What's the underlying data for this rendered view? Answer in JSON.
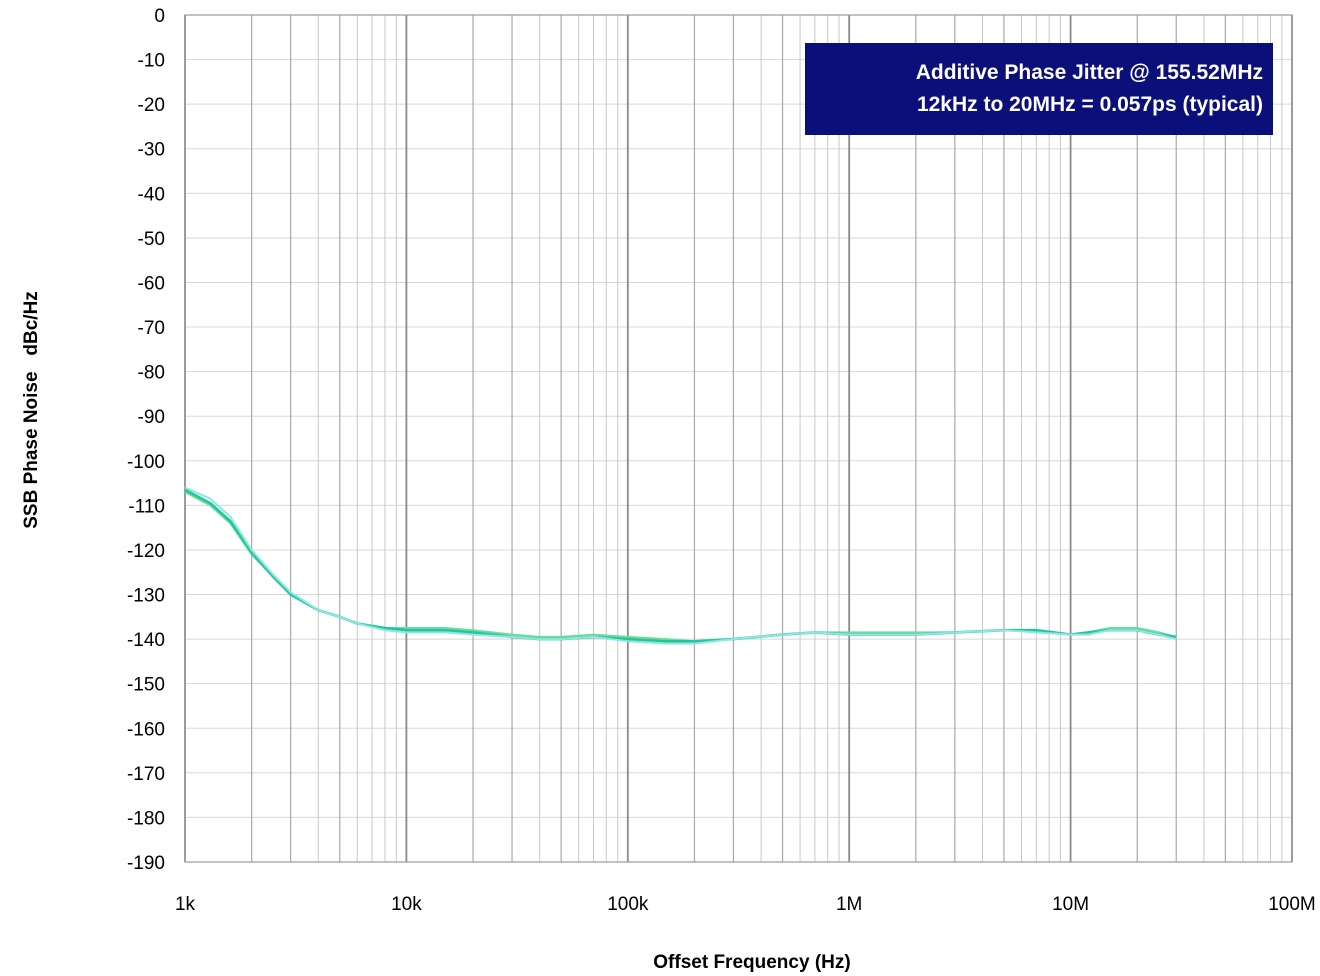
{
  "chart_data": {
    "type": "line",
    "title": "",
    "xlabel": "Offset Frequency (Hz)",
    "ylabel": "SSB Phase Noise   dBc/Hz",
    "x_scale": "log",
    "xlim": [
      1000,
      100000000
    ],
    "ylim": [
      -190,
      0
    ],
    "grid": true,
    "x_ticks": [
      {
        "value": 1000,
        "label": "1k"
      },
      {
        "value": 10000,
        "label": "10k"
      },
      {
        "value": 100000,
        "label": "100k"
      },
      {
        "value": 1000000,
        "label": "1M"
      },
      {
        "value": 10000000,
        "label": "10M"
      },
      {
        "value": 100000000,
        "label": "100M"
      }
    ],
    "y_ticks": [
      0,
      -10,
      -20,
      -30,
      -40,
      -50,
      -60,
      -70,
      -80,
      -90,
      -100,
      -110,
      -120,
      -130,
      -140,
      -150,
      -160,
      -170,
      -180,
      -190
    ],
    "annotation": {
      "lines": [
        "Additive Phase Jitter @ 155.52MHz",
        "12kHz to 20MHz = 0.057ps (typical)"
      ],
      "background": "#0a0f7a",
      "text_color": "#ffffff",
      "placement": "top-right"
    },
    "series": [
      {
        "color": "#6fdc9a",
        "x": [
          1000,
          1300,
          1600,
          2000,
          2500,
          3000,
          4000,
          5000,
          6000,
          8000,
          10000,
          15000,
          20000,
          30000,
          40000,
          50000,
          70000,
          100000,
          150000,
          200000,
          300000,
          500000,
          700000,
          1000000,
          1500000,
          2000000,
          3000000,
          5000000,
          7000000,
          10000000,
          12000000,
          15000000,
          20000000,
          25000000,
          30000000
        ],
        "y": [
          -107,
          -110,
          -114,
          -121,
          -126,
          -130,
          -133.5,
          -135,
          -136.5,
          -137.5,
          -137.5,
          -137.5,
          -138,
          -139,
          -139.5,
          -139.5,
          -139,
          -139.5,
          -140,
          -140.5,
          -140,
          -139,
          -138.5,
          -138.5,
          -138.5,
          -138.5,
          -138.5,
          -138,
          -138,
          -139,
          -138.5,
          -137.5,
          -137.5,
          -138.5,
          -139.5
        ]
      },
      {
        "color": "#22c59e",
        "x": [
          1000,
          1300,
          1600,
          2000,
          2500,
          3000,
          4000,
          5000,
          6000,
          8000,
          10000,
          15000,
          20000,
          30000,
          40000,
          50000,
          70000,
          100000,
          150000,
          200000,
          300000,
          500000,
          700000,
          1000000,
          1500000,
          2000000,
          3000000,
          5000000,
          7000000,
          10000000,
          12000000,
          15000000,
          20000000,
          25000000,
          30000000
        ],
        "y": [
          -106.5,
          -109.5,
          -113.5,
          -120.5,
          -126,
          -130,
          -133.5,
          -135,
          -136.5,
          -137.5,
          -138,
          -138,
          -138.5,
          -139.5,
          -140,
          -140,
          -139.5,
          -140,
          -140.5,
          -140.5,
          -140,
          -139,
          -138.5,
          -139,
          -139,
          -139,
          -138.5,
          -138,
          -138,
          -139,
          -138.5,
          -138,
          -138,
          -139,
          -139.5
        ]
      },
      {
        "color": "#8fe6e3",
        "x": [
          1000,
          1300,
          1600,
          2000,
          2500,
          3000,
          4000,
          5000,
          6000,
          8000,
          10000,
          15000,
          20000,
          30000,
          40000,
          50000,
          70000,
          100000,
          150000,
          200000,
          300000,
          500000,
          700000,
          1000000,
          1500000,
          2000000,
          3000000,
          5000000,
          7000000,
          10000000,
          12000000,
          15000000,
          20000000,
          25000000,
          30000000
        ],
        "y": [
          -106,
          -108.5,
          -112.5,
          -120,
          -125.5,
          -129.5,
          -133.5,
          -135,
          -136.5,
          -138,
          -138.5,
          -138.5,
          -139,
          -139.5,
          -140,
          -140,
          -139.5,
          -140.5,
          -141,
          -141,
          -140,
          -139,
          -138.5,
          -139,
          -139,
          -139,
          -138.5,
          -138,
          -138.5,
          -139,
          -139,
          -138,
          -138,
          -139,
          -140
        ]
      }
    ]
  }
}
